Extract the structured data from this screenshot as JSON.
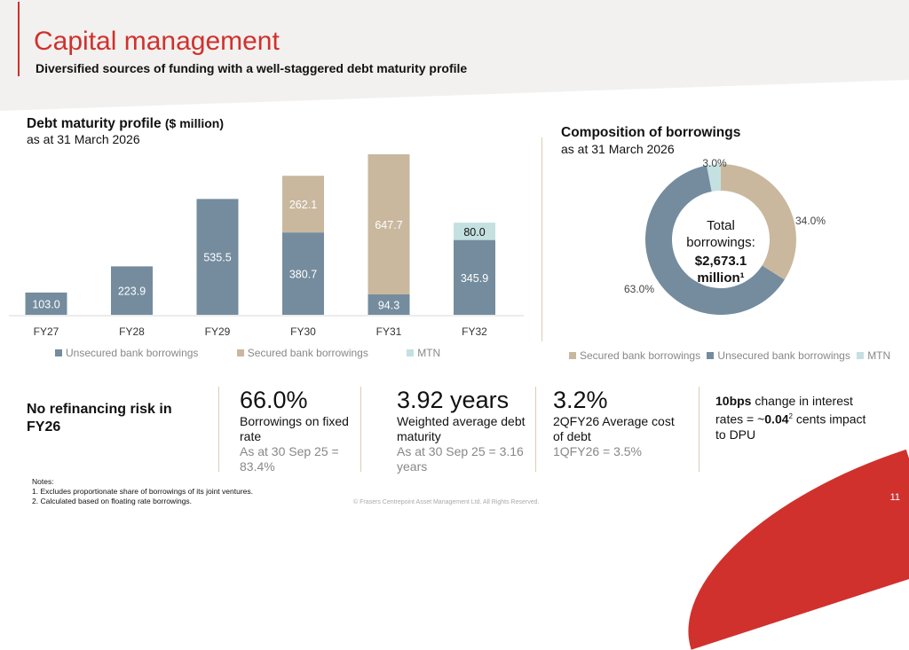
{
  "header": {
    "title": "Capital management",
    "subtitle": "Diversified sources of funding with a well-staggered debt maturity profile"
  },
  "colors": {
    "unsecured": "#748c9e",
    "secured": "#c9b89e",
    "mtn": "#c5e0e1",
    "accent": "#d0312d"
  },
  "chart_data": [
    {
      "type": "bar",
      "stacked": true,
      "title": "Debt maturity profile",
      "title_unit": "($ million)",
      "subtitle": "as at 31 March 2026",
      "categories": [
        "FY27",
        "FY28",
        "FY29",
        "FY30",
        "FY31",
        "FY32"
      ],
      "series": [
        {
          "name": "Unsecured bank borrowings",
          "values": [
            103.0,
            223.9,
            535.5,
            380.7,
            94.3,
            345.9
          ],
          "labels": [
            "103.0",
            "223.9",
            "535.5",
            "380.7",
            "94.3",
            "345.9"
          ]
        },
        {
          "name": "Secured bank borrowings",
          "values": [
            0,
            0,
            0,
            262.1,
            647.7,
            0
          ],
          "labels": [
            "",
            "",
            "",
            "262.1",
            "647.7",
            ""
          ]
        },
        {
          "name": "MTN",
          "values": [
            0,
            0,
            0,
            0,
            0,
            80.0
          ],
          "labels": [
            "",
            "",
            "",
            "",
            "",
            "80.0"
          ]
        }
      ],
      "legend": "bottom",
      "grid": false
    },
    {
      "type": "pie",
      "donut": true,
      "title": "Composition of borrowings",
      "subtitle": "as at 31 March 2026",
      "slices": [
        {
          "name": "Secured bank borrowings",
          "value": 34.0,
          "label": "34.0%"
        },
        {
          "name": "Unsecured bank borrowings",
          "value": 63.0,
          "label": "63.0%"
        },
        {
          "name": "MTN",
          "value": 3.0,
          "label": "3.0%"
        }
      ],
      "center": {
        "line1": "Total",
        "line2": "borrowings:",
        "line3": "$2,673.1",
        "line4": "million¹"
      },
      "legend": "bottom"
    }
  ],
  "stats": {
    "refi": "No refinancing risk in FY26",
    "fixed": {
      "value": "66.0%",
      "label": "Borrowings on fixed rate",
      "prior": "As at 30 Sep 25 = 83.4%"
    },
    "wadm": {
      "value": "3.92 years",
      "label": "Weighted average debt maturity",
      "prior": "As at 30 Sep 25 = 3.16 years"
    },
    "cost": {
      "value": "3.2%",
      "label": "2QFY26 Average cost of debt",
      "prior": "1QFY26 = 3.5%"
    },
    "sens": {
      "bold": "10bps",
      "text": " change in interest rates = ~",
      "value": "0.04",
      "sup": "2",
      "tail": " cents impact to DPU"
    }
  },
  "notes": {
    "title": "Notes:",
    "n1": "1. Excludes proportionate share of borrowings of its joint ventures.",
    "n2": "2. Calculated based on floating rate borrowings."
  },
  "footer": {
    "copyright": "© Frasers Centrepoint Asset Management Ltd. All Rights Reserved.",
    "page": "11"
  }
}
